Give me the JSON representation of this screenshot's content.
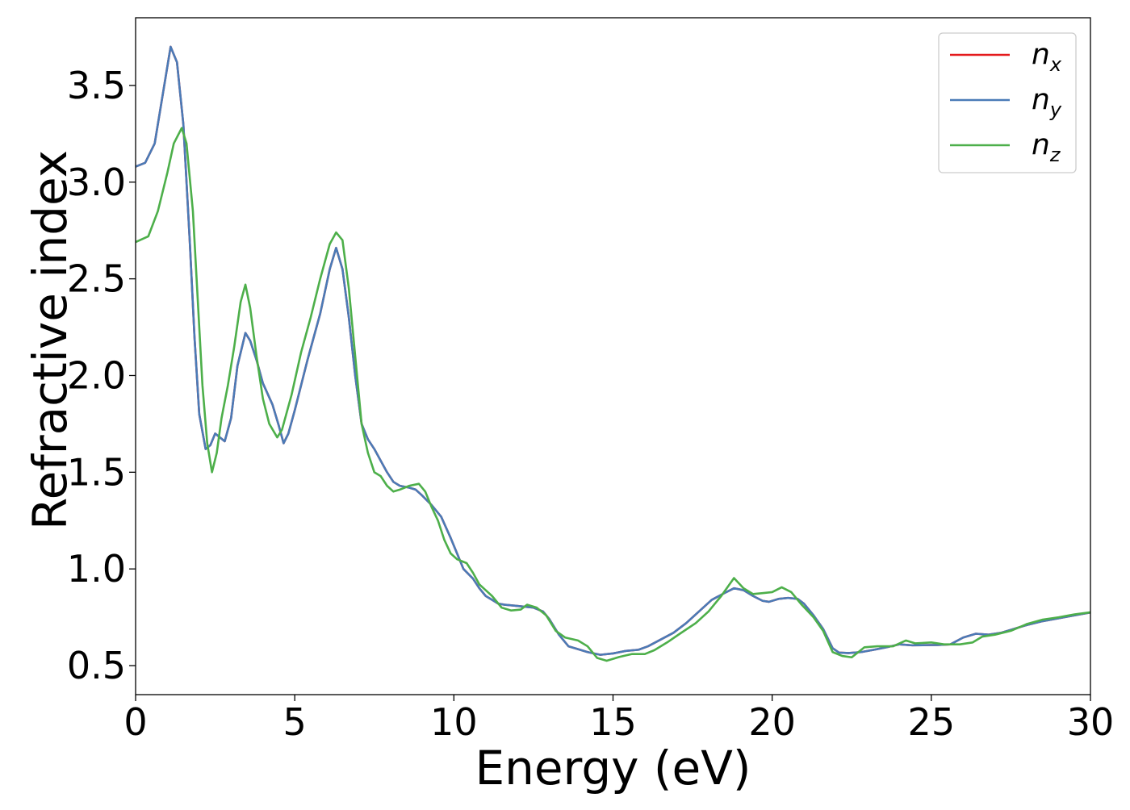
{
  "chart_data": {
    "type": "line",
    "title": "",
    "xlabel": "Energy (eV)",
    "ylabel": "Refractive index",
    "xlim": [
      0,
      30
    ],
    "ylim": [
      0.35,
      3.85
    ],
    "x_ticks": [
      0,
      5,
      10,
      15,
      20,
      25,
      30
    ],
    "x_tick_labels": [
      "0",
      "5",
      "10",
      "15",
      "20",
      "25",
      "30"
    ],
    "y_ticks": [
      0.5,
      1.0,
      1.5,
      2.0,
      2.5,
      3.0,
      3.5
    ],
    "y_tick_labels": [
      "0.5",
      "1.0",
      "1.5",
      "2.0",
      "2.5",
      "3.0",
      "3.5"
    ],
    "grid": false,
    "legend_position": "top-right",
    "series": [
      {
        "name": "n",
        "subscript": "x",
        "color": "#e41a1c",
        "points": [
          [
            0,
            3.08
          ],
          [
            0.3,
            3.1
          ],
          [
            0.6,
            3.2
          ],
          [
            0.9,
            3.5
          ],
          [
            1.1,
            3.7
          ],
          [
            1.3,
            3.62
          ],
          [
            1.5,
            3.3
          ],
          [
            1.7,
            2.7
          ],
          [
            1.85,
            2.2
          ],
          [
            2.0,
            1.8
          ],
          [
            2.2,
            1.62
          ],
          [
            2.35,
            1.64
          ],
          [
            2.5,
            1.7
          ],
          [
            2.65,
            1.68
          ],
          [
            2.8,
            1.66
          ],
          [
            3.0,
            1.78
          ],
          [
            3.2,
            2.05
          ],
          [
            3.45,
            2.22
          ],
          [
            3.6,
            2.18
          ],
          [
            3.8,
            2.08
          ],
          [
            4.0,
            1.96
          ],
          [
            4.3,
            1.85
          ],
          [
            4.5,
            1.74
          ],
          [
            4.65,
            1.65
          ],
          [
            4.8,
            1.7
          ],
          [
            5.0,
            1.82
          ],
          [
            5.4,
            2.08
          ],
          [
            5.8,
            2.32
          ],
          [
            6.1,
            2.55
          ],
          [
            6.3,
            2.66
          ],
          [
            6.5,
            2.55
          ],
          [
            6.7,
            2.3
          ],
          [
            6.9,
            2.0
          ],
          [
            7.1,
            1.75
          ],
          [
            7.3,
            1.67
          ],
          [
            7.5,
            1.62
          ],
          [
            7.7,
            1.56
          ],
          [
            7.9,
            1.5
          ],
          [
            8.1,
            1.45
          ],
          [
            8.3,
            1.43
          ],
          [
            8.6,
            1.42
          ],
          [
            8.8,
            1.41
          ],
          [
            9.0,
            1.38
          ],
          [
            9.3,
            1.33
          ],
          [
            9.6,
            1.27
          ],
          [
            9.9,
            1.16
          ],
          [
            10.1,
            1.08
          ],
          [
            10.3,
            1.0
          ],
          [
            10.6,
            0.95
          ],
          [
            10.8,
            0.9
          ],
          [
            11.0,
            0.86
          ],
          [
            11.2,
            0.84
          ],
          [
            11.4,
            0.82
          ],
          [
            11.6,
            0.815
          ],
          [
            11.9,
            0.81
          ],
          [
            12.2,
            0.805
          ],
          [
            12.5,
            0.8
          ],
          [
            12.8,
            0.78
          ],
          [
            13.0,
            0.74
          ],
          [
            13.3,
            0.66
          ],
          [
            13.6,
            0.6
          ],
          [
            13.9,
            0.585
          ],
          [
            14.2,
            0.57
          ],
          [
            14.6,
            0.556
          ],
          [
            15.0,
            0.563
          ],
          [
            15.4,
            0.576
          ],
          [
            15.8,
            0.582
          ],
          [
            16.1,
            0.6
          ],
          [
            16.5,
            0.635
          ],
          [
            16.9,
            0.67
          ],
          [
            17.3,
            0.72
          ],
          [
            17.7,
            0.78
          ],
          [
            18.1,
            0.84
          ],
          [
            18.5,
            0.875
          ],
          [
            18.8,
            0.9
          ],
          [
            19.1,
            0.89
          ],
          [
            19.4,
            0.86
          ],
          [
            19.7,
            0.835
          ],
          [
            19.9,
            0.83
          ],
          [
            20.2,
            0.845
          ],
          [
            20.5,
            0.85
          ],
          [
            20.8,
            0.845
          ],
          [
            21.0,
            0.82
          ],
          [
            21.3,
            0.76
          ],
          [
            21.6,
            0.69
          ],
          [
            21.9,
            0.59
          ],
          [
            22.1,
            0.567
          ],
          [
            22.4,
            0.565
          ],
          [
            22.8,
            0.57
          ],
          [
            23.2,
            0.582
          ],
          [
            23.6,
            0.595
          ],
          [
            24.0,
            0.61
          ],
          [
            24.4,
            0.605
          ],
          [
            24.8,
            0.606
          ],
          [
            25.2,
            0.607
          ],
          [
            25.6,
            0.61
          ],
          [
            26.0,
            0.645
          ],
          [
            26.4,
            0.665
          ],
          [
            26.8,
            0.66
          ],
          [
            27.2,
            0.67
          ],
          [
            27.6,
            0.69
          ],
          [
            28.0,
            0.71
          ],
          [
            28.5,
            0.73
          ],
          [
            29.0,
            0.745
          ],
          [
            29.5,
            0.76
          ],
          [
            30.0,
            0.775
          ]
        ]
      },
      {
        "name": "n",
        "subscript": "y",
        "color": "#4a7bb7",
        "points": [
          [
            0,
            3.08
          ],
          [
            0.3,
            3.1
          ],
          [
            0.6,
            3.2
          ],
          [
            0.9,
            3.5
          ],
          [
            1.1,
            3.7
          ],
          [
            1.3,
            3.62
          ],
          [
            1.5,
            3.3
          ],
          [
            1.7,
            2.7
          ],
          [
            1.85,
            2.2
          ],
          [
            2.0,
            1.8
          ],
          [
            2.2,
            1.62
          ],
          [
            2.35,
            1.64
          ],
          [
            2.5,
            1.7
          ],
          [
            2.65,
            1.68
          ],
          [
            2.8,
            1.66
          ],
          [
            3.0,
            1.78
          ],
          [
            3.2,
            2.05
          ],
          [
            3.45,
            2.22
          ],
          [
            3.6,
            2.18
          ],
          [
            3.8,
            2.08
          ],
          [
            4.0,
            1.96
          ],
          [
            4.3,
            1.85
          ],
          [
            4.5,
            1.74
          ],
          [
            4.65,
            1.65
          ],
          [
            4.8,
            1.7
          ],
          [
            5.0,
            1.82
          ],
          [
            5.4,
            2.08
          ],
          [
            5.8,
            2.32
          ],
          [
            6.1,
            2.55
          ],
          [
            6.3,
            2.66
          ],
          [
            6.5,
            2.55
          ],
          [
            6.7,
            2.3
          ],
          [
            6.9,
            2.0
          ],
          [
            7.1,
            1.75
          ],
          [
            7.3,
            1.67
          ],
          [
            7.5,
            1.62
          ],
          [
            7.7,
            1.56
          ],
          [
            7.9,
            1.5
          ],
          [
            8.1,
            1.45
          ],
          [
            8.3,
            1.43
          ],
          [
            8.6,
            1.42
          ],
          [
            8.8,
            1.41
          ],
          [
            9.0,
            1.38
          ],
          [
            9.3,
            1.33
          ],
          [
            9.6,
            1.27
          ],
          [
            9.9,
            1.16
          ],
          [
            10.1,
            1.08
          ],
          [
            10.3,
            1.0
          ],
          [
            10.6,
            0.95
          ],
          [
            10.8,
            0.9
          ],
          [
            11.0,
            0.86
          ],
          [
            11.2,
            0.84
          ],
          [
            11.4,
            0.82
          ],
          [
            11.6,
            0.815
          ],
          [
            11.9,
            0.81
          ],
          [
            12.2,
            0.805
          ],
          [
            12.5,
            0.8
          ],
          [
            12.8,
            0.78
          ],
          [
            13.0,
            0.74
          ],
          [
            13.3,
            0.66
          ],
          [
            13.6,
            0.6
          ],
          [
            13.9,
            0.585
          ],
          [
            14.2,
            0.57
          ],
          [
            14.6,
            0.556
          ],
          [
            15.0,
            0.563
          ],
          [
            15.4,
            0.576
          ],
          [
            15.8,
            0.582
          ],
          [
            16.1,
            0.6
          ],
          [
            16.5,
            0.635
          ],
          [
            16.9,
            0.67
          ],
          [
            17.3,
            0.72
          ],
          [
            17.7,
            0.78
          ],
          [
            18.1,
            0.84
          ],
          [
            18.5,
            0.875
          ],
          [
            18.8,
            0.9
          ],
          [
            19.1,
            0.89
          ],
          [
            19.4,
            0.86
          ],
          [
            19.7,
            0.835
          ],
          [
            19.9,
            0.83
          ],
          [
            20.2,
            0.845
          ],
          [
            20.5,
            0.85
          ],
          [
            20.8,
            0.845
          ],
          [
            21.0,
            0.82
          ],
          [
            21.3,
            0.76
          ],
          [
            21.6,
            0.69
          ],
          [
            21.9,
            0.59
          ],
          [
            22.1,
            0.567
          ],
          [
            22.4,
            0.565
          ],
          [
            22.8,
            0.57
          ],
          [
            23.2,
            0.582
          ],
          [
            23.6,
            0.595
          ],
          [
            24.0,
            0.61
          ],
          [
            24.4,
            0.605
          ],
          [
            24.8,
            0.606
          ],
          [
            25.2,
            0.607
          ],
          [
            25.6,
            0.61
          ],
          [
            26.0,
            0.645
          ],
          [
            26.4,
            0.665
          ],
          [
            26.8,
            0.66
          ],
          [
            27.2,
            0.67
          ],
          [
            27.6,
            0.69
          ],
          [
            28.0,
            0.71
          ],
          [
            28.5,
            0.73
          ],
          [
            29.0,
            0.745
          ],
          [
            29.5,
            0.76
          ],
          [
            30.0,
            0.775
          ]
        ]
      },
      {
        "name": "n",
        "subscript": "z",
        "color": "#4daf4a",
        "points": [
          [
            0,
            2.69
          ],
          [
            0.4,
            2.72
          ],
          [
            0.7,
            2.85
          ],
          [
            1.0,
            3.05
          ],
          [
            1.2,
            3.2
          ],
          [
            1.45,
            3.28
          ],
          [
            1.6,
            3.2
          ],
          [
            1.8,
            2.85
          ],
          [
            1.95,
            2.4
          ],
          [
            2.1,
            1.95
          ],
          [
            2.25,
            1.65
          ],
          [
            2.4,
            1.5
          ],
          [
            2.55,
            1.6
          ],
          [
            2.7,
            1.78
          ],
          [
            2.9,
            1.95
          ],
          [
            3.1,
            2.15
          ],
          [
            3.3,
            2.38
          ],
          [
            3.45,
            2.47
          ],
          [
            3.6,
            2.35
          ],
          [
            3.8,
            2.1
          ],
          [
            4.0,
            1.88
          ],
          [
            4.2,
            1.75
          ],
          [
            4.45,
            1.68
          ],
          [
            4.6,
            1.72
          ],
          [
            4.9,
            1.9
          ],
          [
            5.2,
            2.12
          ],
          [
            5.5,
            2.3
          ],
          [
            5.8,
            2.5
          ],
          [
            6.1,
            2.68
          ],
          [
            6.3,
            2.74
          ],
          [
            6.5,
            2.7
          ],
          [
            6.7,
            2.45
          ],
          [
            6.9,
            2.1
          ],
          [
            7.1,
            1.75
          ],
          [
            7.3,
            1.6
          ],
          [
            7.5,
            1.5
          ],
          [
            7.7,
            1.48
          ],
          [
            7.9,
            1.43
          ],
          [
            8.1,
            1.4
          ],
          [
            8.3,
            1.41
          ],
          [
            8.6,
            1.43
          ],
          [
            8.9,
            1.44
          ],
          [
            9.1,
            1.4
          ],
          [
            9.3,
            1.32
          ],
          [
            9.5,
            1.25
          ],
          [
            9.7,
            1.15
          ],
          [
            9.9,
            1.08
          ],
          [
            10.1,
            1.05
          ],
          [
            10.4,
            1.03
          ],
          [
            10.6,
            0.98
          ],
          [
            10.8,
            0.92
          ],
          [
            11.0,
            0.89
          ],
          [
            11.2,
            0.86
          ],
          [
            11.5,
            0.8
          ],
          [
            11.8,
            0.785
          ],
          [
            12.1,
            0.79
          ],
          [
            12.3,
            0.815
          ],
          [
            12.6,
            0.8
          ],
          [
            12.9,
            0.76
          ],
          [
            13.2,
            0.68
          ],
          [
            13.5,
            0.645
          ],
          [
            13.9,
            0.63
          ],
          [
            14.2,
            0.6
          ],
          [
            14.5,
            0.54
          ],
          [
            14.8,
            0.525
          ],
          [
            15.2,
            0.545
          ],
          [
            15.6,
            0.56
          ],
          [
            16.0,
            0.56
          ],
          [
            16.3,
            0.58
          ],
          [
            16.7,
            0.62
          ],
          [
            17.1,
            0.665
          ],
          [
            17.6,
            0.72
          ],
          [
            18.0,
            0.78
          ],
          [
            18.4,
            0.86
          ],
          [
            18.8,
            0.953
          ],
          [
            19.1,
            0.9
          ],
          [
            19.4,
            0.87
          ],
          [
            19.7,
            0.875
          ],
          [
            20.0,
            0.88
          ],
          [
            20.3,
            0.905
          ],
          [
            20.6,
            0.88
          ],
          [
            20.9,
            0.82
          ],
          [
            21.3,
            0.75
          ],
          [
            21.6,
            0.68
          ],
          [
            21.9,
            0.57
          ],
          [
            22.2,
            0.55
          ],
          [
            22.5,
            0.543
          ],
          [
            22.9,
            0.595
          ],
          [
            23.3,
            0.6
          ],
          [
            23.8,
            0.6
          ],
          [
            24.2,
            0.63
          ],
          [
            24.5,
            0.615
          ],
          [
            25.0,
            0.62
          ],
          [
            25.4,
            0.61
          ],
          [
            25.9,
            0.61
          ],
          [
            26.3,
            0.62
          ],
          [
            26.6,
            0.65
          ],
          [
            27.0,
            0.66
          ],
          [
            27.5,
            0.68
          ],
          [
            28.0,
            0.715
          ],
          [
            28.5,
            0.738
          ],
          [
            29.0,
            0.75
          ],
          [
            29.5,
            0.765
          ],
          [
            30.0,
            0.776
          ]
        ]
      }
    ]
  }
}
